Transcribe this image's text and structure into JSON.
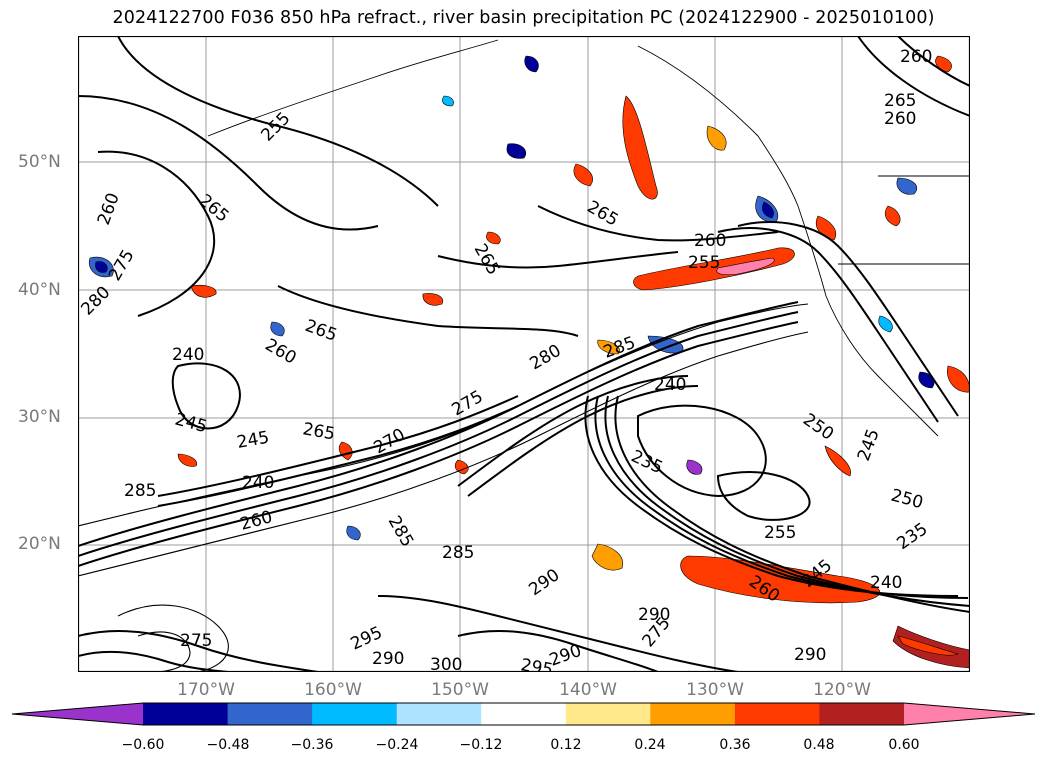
{
  "title": "2024122700 F036 850 hPa refract., river basin precipitation PC (2024122900 - 2025010100)",
  "map": {
    "projection": "cylindrical",
    "lon_range": [
      -180,
      -110
    ],
    "lat_range": [
      10,
      60
    ],
    "gridlines": true,
    "lat_labels": [
      "50°N",
      "40°N",
      "30°N",
      "20°N"
    ],
    "lon_labels": [
      "170°W",
      "160°W",
      "150°W",
      "140°W",
      "130°W",
      "120°W"
    ],
    "contour_labels": [
      "260",
      "255",
      "265",
      "265",
      "260",
      "275",
      "280",
      "265",
      "260",
      "240",
      "245",
      "265",
      "245",
      "240",
      "285",
      "270",
      "260",
      "275",
      "285",
      "280",
      "285",
      "240",
      "235",
      "250",
      "245",
      "250",
      "255",
      "235",
      "240",
      "245",
      "260",
      "290",
      "275",
      "290",
      "295",
      "290",
      "300",
      "260",
      "265",
      "260"
    ]
  },
  "colorbar": {
    "ticks": [
      "−0.60",
      "−0.48",
      "−0.36",
      "−0.24",
      "−0.12",
      "0.12",
      "0.24",
      "0.36",
      "0.48",
      "0.60"
    ],
    "colors": [
      "#9933cc",
      "#000099",
      "#3366cc",
      "#00bbff",
      "#aee3ff",
      "#ffffff",
      "#ffe98a",
      "#ff9e00",
      "#ff3a00",
      "#b22020",
      "#ff80aa"
    ],
    "extend": "both"
  }
}
